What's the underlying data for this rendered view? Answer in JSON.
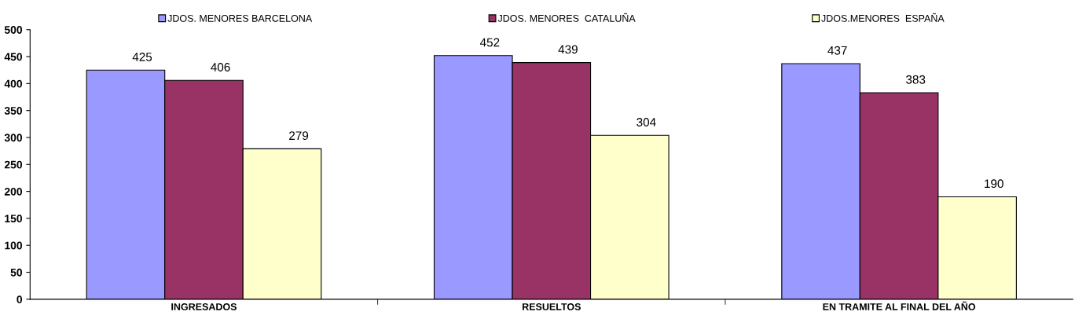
{
  "chart_data": {
    "type": "bar",
    "categories": [
      "INGRESADOS",
      "RESUELTOS",
      "EN TRAMITE AL FINAL DEL AÑO"
    ],
    "series": [
      {
        "name": "JDOS. MENORES BARCELONA",
        "color": "#9999ff",
        "values": [
          425,
          452,
          437
        ]
      },
      {
        "name": "JDOS. MENORES  CATALUÑA",
        "color": "#993366",
        "values": [
          406,
          439,
          383
        ]
      },
      {
        "name": "JDOS.MENORES  ESPAÑA",
        "color": "#ffffcc",
        "values": [
          279,
          304,
          190
        ]
      }
    ],
    "ylim": [
      0,
      500
    ],
    "yticks": [
      0,
      50,
      100,
      150,
      200,
      250,
      300,
      350,
      400,
      450,
      500
    ],
    "data_labels": true,
    "grid": false,
    "legend": "top"
  }
}
